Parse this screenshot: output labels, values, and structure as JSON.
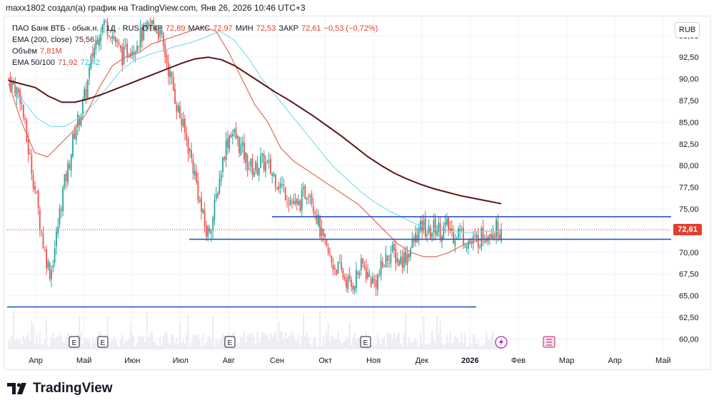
{
  "caption": "maxx1802 создал(а) график на TradingView.com, Янв 26, 2026 10:46 UTC+3",
  "legend": {
    "symbol": "ПАО Банк ВТБ - обык.н. · 1Д · RUS",
    "o_label": "ОТКР",
    "o": "72,89",
    "h_label": "МАКС",
    "h": "72,97",
    "l_label": "МИН",
    "l": "72,53",
    "c_label": "ЗАКР",
    "c": "72,61",
    "change": "−0,53 (−0,72%)",
    "ema200_label": "EMA (200, close)",
    "ema200_value": "75,56",
    "volume_label": "Объём",
    "volume_value": "7,81M",
    "ema50100_label": "EMA 50/100",
    "ema50_value": "71,92",
    "ema100_value": "72,42"
  },
  "currency_button": "RUB",
  "last_price": "72,61",
  "event_markers": [
    "E",
    "E",
    "E",
    "E"
  ],
  "brand": "TradingView",
  "colors": {
    "up": "#26a69a",
    "down": "#ef5350",
    "ema200": "#5d1515",
    "ema50": "#e06a5a",
    "ema100": "#80deea",
    "hline": "#2457c5",
    "grid": "#f0f3fa",
    "axis_text": "#131722",
    "price_tag": "#e0402c",
    "volume": "#e8eaee"
  },
  "chart_data": {
    "type": "candlestick",
    "y_axis_ticks": [
      "95,00",
      "92,50",
      "90,00",
      "87,50",
      "85,00",
      "82,50",
      "80,00",
      "77,50",
      "75,00",
      "72,50",
      "70,00",
      "67,50",
      "65,00",
      "62,50",
      "60,00"
    ],
    "x_axis_ticks": [
      "Апр",
      "Май",
      "Июн",
      "Июл",
      "Авг",
      "Сен",
      "Окт",
      "Ноя",
      "Дек",
      "2026",
      "Фев",
      "Мар",
      "Апр",
      "Май"
    ],
    "ylim": [
      58.8,
      97.2
    ],
    "last_close": 72.61,
    "horizontal_lines": [
      {
        "price": 74.1,
        "from": "Сен",
        "to": "Янв"
      },
      {
        "price": 71.5,
        "from": "Июл",
        "to": "Янв"
      },
      {
        "price": 63.7,
        "from": "Мар",
        "to": "Янв"
      }
    ],
    "close_path": [
      90.0,
      89.0,
      88.0,
      83.0,
      79.0,
      74.5,
      70.0,
      67.5,
      72.0,
      77.0,
      80.0,
      84.0,
      86.0,
      89.0,
      93.0,
      95.5,
      96.5,
      95.5,
      94.0,
      92.5,
      93.5,
      94.0,
      95.0,
      95.5,
      96.5,
      95.5,
      93.0,
      90.0,
      87.0,
      84.5,
      82.0,
      79.0,
      75.0,
      72.0,
      74.0,
      78.0,
      82.0,
      84.0,
      83.0,
      81.5,
      80.0,
      79.5,
      80.5,
      80.0,
      79.0,
      78.0,
      77.0,
      76.0,
      75.0,
      76.5,
      77.5,
      75.0,
      72.0,
      70.0,
      68.5,
      68.0,
      67.0,
      66.0,
      67.5,
      68.5,
      67.0,
      66.5,
      68.0,
      69.5,
      70.0,
      69.0,
      69.5,
      70.5,
      72.0,
      73.0,
      72.0,
      73.0,
      72.5,
      73.0,
      72.0,
      72.5,
      71.5,
      71.0,
      71.5,
      72.0,
      72.5,
      72.8,
      72.6
    ],
    "ema200": [
      89.8,
      89.4,
      89.0,
      88.0,
      87.3,
      87.3,
      87.7,
      88.2,
      88.8,
      89.4,
      90.0,
      90.6,
      91.2,
      91.8,
      92.3,
      92.5,
      92.2,
      91.5,
      90.5,
      89.5,
      88.5,
      87.6,
      86.6,
      85.6,
      84.5,
      83.4,
      82.2,
      81.0,
      80.0,
      79.1,
      78.4,
      77.8,
      77.3,
      76.9,
      76.5,
      76.2,
      75.9,
      75.6
    ],
    "ema50": [
      89.5,
      85.0,
      81.5,
      81.0,
      82.5,
      84.0,
      86.0,
      89.0,
      91.5,
      92.5,
      93.0,
      94.0,
      94.5,
      95.0,
      95.5,
      96.0,
      95.5,
      93.0,
      90.0,
      87.0,
      85.0,
      82.0,
      80.5,
      79.5,
      78.5,
      77.5,
      76.5,
      75.5,
      74.0,
      72.5,
      71.0,
      70.0,
      69.5,
      69.5,
      70.0,
      70.8,
      71.3,
      71.6,
      71.9
    ],
    "ema100": [
      89.0,
      87.5,
      85.5,
      84.5,
      84.5,
      85.5,
      87.0,
      89.0,
      91.0,
      92.2,
      92.8,
      93.3,
      93.8,
      94.2,
      94.8,
      95.5,
      94.5,
      92.5,
      90.0,
      88.0,
      86.0,
      84.0,
      82.0,
      80.0,
      78.5,
      77.0,
      75.8,
      74.8,
      74.0,
      73.2,
      72.8,
      72.5,
      72.3,
      72.3,
      72.4,
      72.4
    ]
  }
}
